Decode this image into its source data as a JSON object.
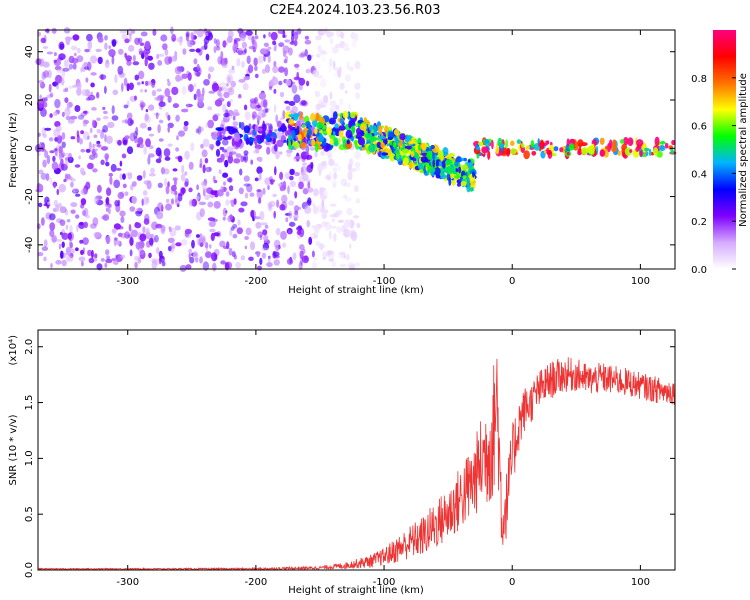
{
  "title": "C2E4.2024.103.23.56.R03",
  "chart_data": [
    {
      "type": "heatmap",
      "xlabel": "Height of straight line (km)",
      "ylabel": "Frequency (Hz)",
      "xlim": [
        -370,
        127
      ],
      "ylim": [
        -50,
        49
      ],
      "xticks": [
        -300,
        -200,
        -100,
        0,
        100
      ],
      "xtick_labels": [
        "-300",
        "-200",
        "-100",
        "0",
        "100"
      ],
      "yticks": [
        -40,
        -20,
        0,
        20,
        40
      ],
      "ytick_labels": [
        "-40",
        "-20",
        "0",
        "20",
        "40"
      ],
      "colorbar": {
        "label": "Normalized spectral amplitude",
        "range": [
          0,
          1
        ],
        "ticks": [
          0.0,
          0.2,
          0.4,
          0.6,
          0.8
        ],
        "tick_labels": [
          "0.0",
          "0.2",
          "0.4",
          "0.6",
          "0.8"
        ],
        "colors": [
          "#ffffff",
          "#d5aaff",
          "#7e00ff",
          "#0000ff",
          "#00b4ff",
          "#00ff00",
          "#ffff00",
          "#ff7000",
          "#ff0000",
          "#ff0080"
        ]
      },
      "regions": [
        {
          "x": [
            -370,
            -155
          ],
          "y": [
            -50,
            49
          ],
          "level": 0.2,
          "pattern": "dense scattered noise"
        },
        {
          "x": [
            -155,
            -120
          ],
          "y": [
            -50,
            49
          ],
          "level": 0.05,
          "pattern": "faint scattered noise"
        },
        {
          "x": [
            -230,
            -150
          ],
          "y": [
            2,
            10
          ],
          "level": 0.3,
          "pattern": "band"
        },
        {
          "x": [
            -175,
            -120
          ],
          "y": [
            0,
            14
          ],
          "level": 0.6,
          "pattern": "band"
        },
        {
          "x": [
            -120,
            -30
          ],
          "y": [
            -22,
            12
          ],
          "level": 0.55,
          "pattern": "descending band"
        },
        {
          "x": [
            -30,
            127
          ],
          "y": [
            -3,
            3
          ],
          "level": 0.85,
          "pattern": "narrow band at 0 Hz"
        }
      ]
    },
    {
      "type": "line",
      "xlabel": "Height of straight line (km)",
      "ylabel": "SNR (10 * v/v)",
      "y_multiplier": "(x10⁴)",
      "xlim": [
        -370,
        127
      ],
      "ylim": [
        0,
        2.15
      ],
      "xticks": [
        -300,
        -200,
        -100,
        0,
        100
      ],
      "xtick_labels": [
        "-300",
        "-200",
        "-100",
        "0",
        "100"
      ],
      "yticks": [
        0.0,
        0.5,
        1.0,
        1.5,
        2.0
      ],
      "ytick_labels": [
        "0.0",
        "0.5",
        "1.0",
        "1.5",
        "2.0"
      ],
      "series": [
        {
          "color": "#ee3333",
          "x": [
            -370,
            -300,
            -200,
            -150,
            -130,
            -110,
            -100,
            -90,
            -80,
            -70,
            -60,
            -50,
            -40,
            -30,
            -25,
            -20,
            -15,
            -12,
            -10,
            -8,
            -5,
            0,
            5,
            10,
            15,
            20,
            30,
            40,
            50,
            60,
            70,
            80,
            90,
            100,
            110,
            120,
            127
          ],
          "y": [
            0.01,
            0.01,
            0.01,
            0.02,
            0.04,
            0.08,
            0.12,
            0.18,
            0.25,
            0.3,
            0.4,
            0.5,
            0.65,
            0.8,
            0.95,
            1.05,
            1.2,
            1.6,
            1.0,
            0.45,
            0.55,
            1.0,
            1.3,
            1.45,
            1.5,
            1.6,
            1.7,
            1.75,
            1.75,
            1.7,
            1.72,
            1.7,
            1.68,
            1.65,
            1.62,
            1.6,
            1.6
          ],
          "amplitude": [
            0.005,
            0.005,
            0.008,
            0.015,
            0.03,
            0.06,
            0.08,
            0.12,
            0.15,
            0.18,
            0.22,
            0.25,
            0.3,
            0.35,
            0.4,
            0.5,
            0.6,
            0.6,
            0.5,
            0.35,
            0.3,
            0.3,
            0.25,
            0.2,
            0.18,
            0.18,
            0.17,
            0.16,
            0.15,
            0.14,
            0.14,
            0.13,
            0.13,
            0.12,
            0.12,
            0.12,
            0.12
          ]
        }
      ]
    }
  ]
}
